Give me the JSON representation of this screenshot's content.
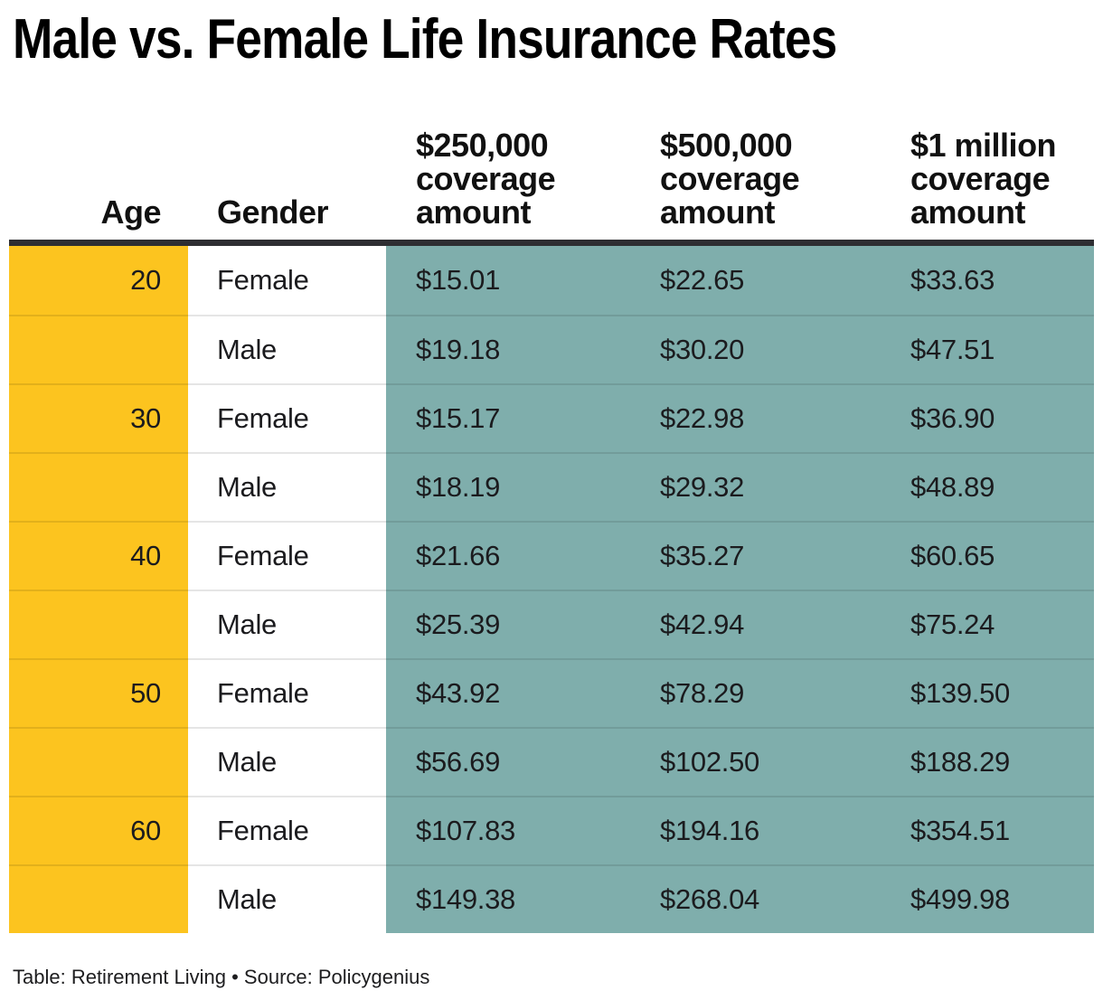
{
  "title": "Male vs. Female Life Insurance Rates",
  "footer": "Table: Retirement Living • Source: Policygenius",
  "columns": {
    "age": "Age",
    "gender": "Gender",
    "c250": "$250,000 coverage amount",
    "c500": "$500,000 coverage amount",
    "c1m": "$1 million coverage amount"
  },
  "colors": {
    "age_column": "#FCC41F",
    "coverage_columns": "#7FAEAC",
    "header_rule": "#2E2E32",
    "row_separator": "rgba(0,0,0,0.10)"
  },
  "chart_data": {
    "type": "table",
    "title": "Male vs. Female Life Insurance Rates",
    "columns": [
      "Age",
      "Gender",
      "$250,000 coverage amount",
      "$500,000 coverage amount",
      "$1 million coverage amount"
    ],
    "rows": [
      [
        "20",
        "Female",
        "$15.01",
        "$22.65",
        "$33.63"
      ],
      [
        "",
        "Male",
        "$19.18",
        "$30.20",
        "$47.51"
      ],
      [
        "30",
        "Female",
        "$15.17",
        "$22.98",
        "$36.90"
      ],
      [
        "",
        "Male",
        "$18.19",
        "$29.32",
        "$48.89"
      ],
      [
        "40",
        "Female",
        "$21.66",
        "$35.27",
        "$60.65"
      ],
      [
        "",
        "Male",
        "$25.39",
        "$42.94",
        "$75.24"
      ],
      [
        "50",
        "Female",
        "$43.92",
        "$78.29",
        "$139.50"
      ],
      [
        "",
        "Male",
        "$56.69",
        "$102.50",
        "$188.29"
      ],
      [
        "60",
        "Female",
        "$107.83",
        "$194.16",
        "$354.51"
      ],
      [
        "",
        "Male",
        "$149.38",
        "$268.04",
        "$499.98"
      ]
    ],
    "footer": "Table: Retirement Living • Source: Policygenius"
  }
}
